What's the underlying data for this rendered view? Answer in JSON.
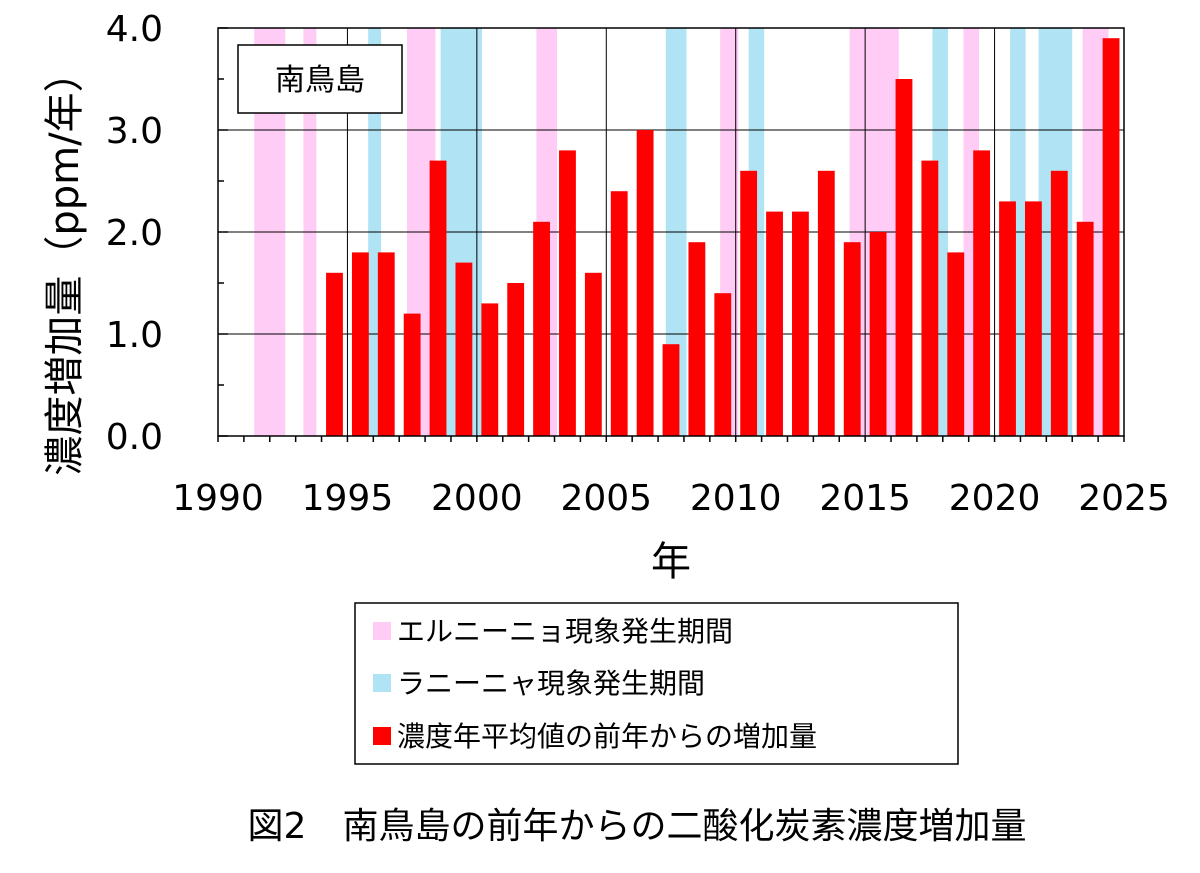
{
  "chart_data": {
    "type": "bar",
    "title": "図2　南鳥島の前年からの二酸化炭素濃度増加量",
    "station_label": "南鳥島",
    "xlabel": "年",
    "ylabel": "濃度増加量（ppm/年）",
    "xlim": [
      1990,
      2025
    ],
    "ylim": [
      0,
      4.0
    ],
    "x_ticks": [
      1990,
      1995,
      2000,
      2005,
      2010,
      2015,
      2020,
      2025
    ],
    "y_ticks": [
      0,
      1,
      2,
      3,
      4
    ],
    "y_tick_labels": [
      "0.0",
      "1.0",
      "2.0",
      "3.0",
      "4.0"
    ],
    "gridlines": "horizontal-major",
    "legend_position": "bottom",
    "series": [
      {
        "name": "濃度年平均値の前年からの増加量",
        "color": "#ff0000",
        "x": [
          1994,
          1995,
          1996,
          1997,
          1998,
          1999,
          2000,
          2001,
          2002,
          2003,
          2004,
          2005,
          2006,
          2007,
          2008,
          2009,
          2010,
          2011,
          2012,
          2013,
          2014,
          2015,
          2016,
          2017,
          2018,
          2019,
          2020,
          2021,
          2022,
          2023,
          2024
        ],
        "values": [
          1.6,
          1.8,
          1.8,
          1.2,
          2.7,
          1.7,
          1.3,
          1.5,
          2.1,
          2.8,
          1.6,
          2.4,
          3.0,
          0.9,
          1.9,
          1.4,
          2.6,
          2.2,
          2.2,
          2.6,
          1.9,
          2.0,
          3.5,
          2.7,
          1.8,
          2.8,
          2.3,
          2.3,
          2.6,
          2.1,
          3.9
        ]
      }
    ],
    "el_nino_periods": {
      "name": "エルニーニョ現象発生期間",
      "color": "#ffccf5",
      "ranges": [
        [
          1991.4,
          1992.6
        ],
        [
          1993.3,
          1993.8
        ],
        [
          1997.3,
          1998.4
        ],
        [
          2002.3,
          2003.1
        ],
        [
          2009.4,
          2010.1
        ],
        [
          2014.4,
          2016.3
        ],
        [
          2018.8,
          2019.4
        ],
        [
          2023.4,
          2024.4
        ]
      ]
    },
    "la_nina_periods": {
      "name": "ラニーニャ現象発生期間",
      "color": "#b0e4f4",
      "ranges": [
        [
          1995.8,
          1996.3
        ],
        [
          1998.6,
          2000.2
        ],
        [
          2007.3,
          2008.1
        ],
        [
          2010.5,
          2011.1
        ],
        [
          2017.6,
          2018.2
        ],
        [
          2020.6,
          2021.2
        ],
        [
          2021.7,
          2023.0
        ]
      ]
    }
  }
}
